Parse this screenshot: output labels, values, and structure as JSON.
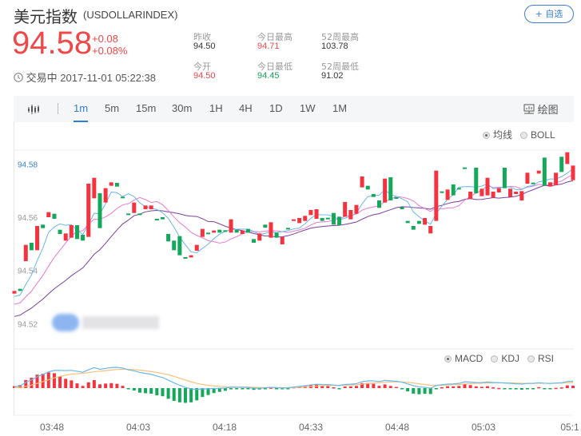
{
  "header": {
    "title": "美元指数",
    "code": "(USDOLLARINDEX)",
    "add_button": "+ 自选"
  },
  "quote": {
    "price": "94.58",
    "change": "+0.08",
    "change_pct": "+0.08%",
    "status": "交易中",
    "datetime": "2017-11-01 05:22:38",
    "stats": [
      {
        "label": "昨收",
        "value": "94.50",
        "color": "#333333"
      },
      {
        "label": "今日最高",
        "value": "94.71",
        "color": "#f04848"
      },
      {
        "label": "52周最高",
        "value": "103.78",
        "color": "#333333"
      },
      {
        "label": "今开",
        "value": "94.50",
        "color": "#f04848"
      },
      {
        "label": "今日最低",
        "value": "94.45",
        "color": "#1aa260"
      },
      {
        "label": "52周最低",
        "value": "91.02",
        "color": "#333333"
      }
    ]
  },
  "toolbar": {
    "tabs": [
      "1m",
      "5m",
      "15m",
      "30m",
      "1H",
      "4H",
      "1D",
      "1W",
      "1M"
    ],
    "active": "1m",
    "draw_label": "绘图"
  },
  "colors": {
    "up": "#f5333f",
    "down": "#14a85a",
    "accent": "#2f7bd6",
    "ma5": "#6ab7ea",
    "ma10": "#ea7ad4",
    "ma20": "#7a3e9c",
    "dif": "#6ab7ea",
    "dea": "#f7c27d"
  },
  "main_legend": {
    "options": [
      "均线",
      "BOLL"
    ],
    "selected": "均线"
  },
  "sub_legend": {
    "options": [
      "MACD",
      "KDJ",
      "RSI"
    ],
    "selected": "MACD"
  },
  "chart_data": {
    "type": "candlestick",
    "interval": "1m",
    "current_price_label": "94.58",
    "y_ticks": [
      "94.56",
      "94.54",
      "94.52"
    ],
    "ylim": [
      94.5165,
      94.5855
    ],
    "x_ticks": [
      "03:48",
      "04:03",
      "04:18",
      "04:33",
      "04:48",
      "05:03",
      "05:1"
    ],
    "indicators": [
      "MA5",
      "MA10",
      "MA20",
      "MACD"
    ],
    "candles_open_close": [
      [
        94.5316,
        94.5326
      ],
      [
        94.5334,
        94.5326
      ],
      [
        94.5438,
        94.5499
      ],
      [
        94.5507,
        94.5479
      ],
      [
        94.5479,
        94.557
      ],
      [
        94.5575,
        94.5562
      ],
      [
        94.5603,
        94.5622
      ],
      [
        94.5616,
        94.5597
      ],
      [
        94.5556,
        94.554
      ],
      [
        94.5515,
        94.5542
      ],
      [
        94.5526,
        94.5573
      ],
      [
        94.5573,
        94.5521
      ],
      [
        94.5537,
        94.5515
      ],
      [
        94.5529,
        94.5729
      ],
      [
        94.5674,
        94.5751
      ],
      [
        94.5693,
        94.5562
      ],
      [
        94.5658,
        94.5712
      ],
      [
        94.5721,
        94.5734
      ],
      [
        94.5732,
        94.5718
      ],
      [
        94.568,
        94.5678
      ],
      [
        94.5617,
        94.5615
      ],
      [
        94.5619,
        94.5658
      ],
      [
        94.5617,
        94.5615
      ],
      [
        94.5633,
        94.5647
      ],
      [
        94.5633,
        94.5647
      ],
      [
        94.5597,
        94.5594
      ],
      [
        94.5603,
        94.5595
      ],
      [
        94.554,
        94.5512
      ],
      [
        94.5515,
        94.5479
      ],
      [
        94.5532,
        94.546
      ],
      [
        94.5453,
        94.5451
      ],
      [
        94.5452,
        94.546
      ],
      [
        94.5477,
        94.5499
      ],
      [
        94.5529,
        94.5559
      ],
      [
        94.5545,
        94.554
      ],
      [
        94.5545,
        94.5553
      ],
      [
        94.5556,
        94.5545
      ],
      [
        94.5554,
        94.5552
      ],
      [
        94.5545,
        94.5595
      ],
      [
        94.5556,
        94.5545
      ],
      [
        94.554,
        94.5553
      ],
      [
        94.5559,
        94.5545
      ],
      [
        94.5521,
        94.5507
      ],
      [
        94.5515,
        94.5542
      ],
      [
        94.5575,
        94.5564
      ],
      [
        94.5526,
        94.5584
      ],
      [
        94.5545,
        94.5526
      ],
      [
        94.5501,
        94.5529
      ],
      [
        94.5563,
        94.5561
      ],
      [
        94.5589,
        94.5595
      ],
      [
        94.5581,
        94.56
      ],
      [
        94.5589,
        94.5608
      ],
      [
        94.5611,
        94.563
      ],
      [
        94.5597,
        94.5633
      ],
      [
        94.56,
        94.5589
      ],
      [
        94.5601,
        94.5599
      ],
      [
        94.5619,
        94.5575
      ],
      [
        94.5605,
        94.5573
      ],
      [
        94.5605,
        94.566
      ],
      [
        94.5595,
        94.563
      ],
      [
        94.5616,
        94.5649
      ],
      [
        94.5715,
        94.5756
      ],
      [
        94.5721,
        94.5707
      ],
      [
        94.569,
        94.5679
      ],
      [
        94.5666,
        94.5638
      ],
      [
        94.5658,
        94.5748
      ],
      [
        94.5753,
        94.5666
      ],
      [
        94.5678,
        94.5676
      ],
      [
        94.5641,
        94.5633
      ],
      [
        94.5589,
        94.5581
      ],
      [
        94.557,
        94.5556
      ],
      [
        94.5589,
        94.5578
      ],
      [
        94.5575,
        94.56
      ],
      [
        94.5542,
        94.557
      ],
      [
        94.5589,
        94.5778
      ],
      [
        94.57,
        94.5698
      ],
      [
        94.5668,
        94.5707
      ],
      [
        94.5726,
        94.5685
      ],
      [
        94.5713,
        94.5711
      ],
      [
        94.579,
        94.5788
      ],
      [
        94.5671,
        94.5699
      ],
      [
        94.5789,
        94.5693
      ],
      [
        94.5682,
        94.571
      ],
      [
        94.5685,
        94.5751
      ],
      [
        94.5677,
        94.5699
      ],
      [
        94.5696,
        94.5712
      ],
      [
        94.5789,
        94.5712
      ],
      [
        94.5679,
        94.571
      ],
      [
        94.569,
        94.5699
      ],
      [
        94.5666,
        94.5701
      ],
      [
        94.5729,
        94.577
      ],
      [
        94.5733,
        94.5731
      ],
      [
        94.5767,
        94.5778
      ],
      [
        94.5827,
        94.5721
      ],
      [
        94.5718,
        94.5734
      ],
      [
        94.5723,
        94.577
      ],
      [
        94.583,
        94.5773
      ],
      [
        94.5803,
        94.5847
      ],
      [
        94.5742,
        94.5797
      ]
    ]
  }
}
